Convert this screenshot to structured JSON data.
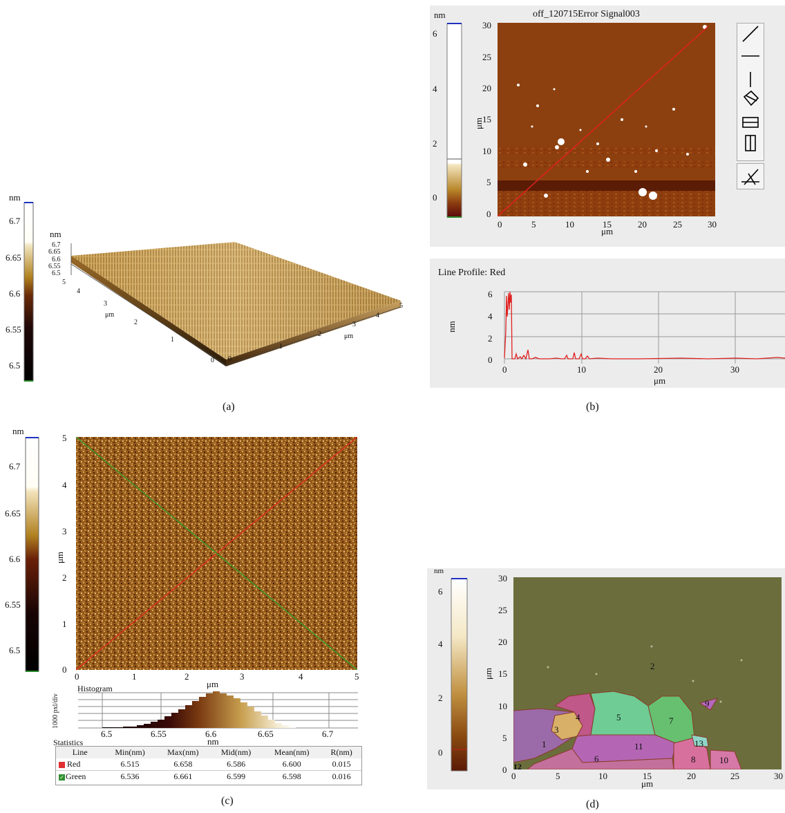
{
  "panel_a": {
    "caption": "(a)",
    "colorbar": {
      "unit": "nm",
      "ticks": [
        "6.7",
        "6.65",
        "6.6",
        "6.55",
        "6.5"
      ]
    },
    "plot3d": {
      "z_unit": "nm",
      "z_ticks": [
        "6.7",
        "6.65",
        "6.6",
        "6.55",
        "6.5"
      ],
      "left_axis_ticks": [
        "5",
        "4",
        "3",
        "2",
        "1",
        "0"
      ],
      "right_axis_ticks": [
        "0",
        "1",
        "2",
        "3",
        "4",
        "5"
      ],
      "left_axis_label": "μm",
      "right_axis_label": "μm"
    }
  },
  "panel_b": {
    "caption": "(b)",
    "title": "off_120715Error Signal003",
    "colorbar": {
      "unit": "nm",
      "ticks": [
        "6",
        "4",
        "2",
        "0"
      ]
    },
    "image": {
      "ylabel": "μm",
      "xlabel": "μm",
      "y_ticks": [
        "30",
        "25",
        "20",
        "15",
        "10",
        "5",
        "0"
      ],
      "x_ticks": [
        "0",
        "5",
        "10",
        "15",
        "20",
        "25",
        "30"
      ]
    },
    "tools": [
      "diagonal-line-tool",
      "horizontal-line-tool",
      "vertical-line-tool",
      "box-diagonal-tool",
      "horizontal-box-tool",
      "vertical-box-tool",
      "angle-tool"
    ],
    "profile": {
      "title": "Line Profile: Red",
      "ylabel": "nm",
      "xlabel": "μm",
      "y_ticks": [
        "6",
        "4",
        "2",
        "0"
      ],
      "x_ticks": [
        "0",
        "10",
        "20",
        "30"
      ],
      "line_color": "#e02020"
    }
  },
  "panel_c": {
    "caption": "(c)",
    "colorbar": {
      "unit": "nm",
      "ticks": [
        "6.7",
        "6.65",
        "6.6",
        "6.55",
        "6.5"
      ]
    },
    "image": {
      "ylabel": "μm",
      "xlabel": "μm",
      "y_ticks": [
        "5",
        "4",
        "3",
        "2",
        "1",
        "0"
      ],
      "x_ticks": [
        "0",
        "1",
        "2",
        "3",
        "4",
        "5"
      ],
      "line_colors": {
        "red": "#e0301e",
        "green": "#3a9a2a"
      }
    },
    "histogram": {
      "title": "Histogram",
      "ylabel": "1000 pxl/div",
      "xlabel": "nm",
      "x_ticks": [
        "6.5",
        "6.55",
        "6.6",
        "6.65",
        "6.7"
      ]
    },
    "statistics": {
      "title": "Statistics",
      "headers": [
        "Line",
        "Min(nm)",
        "Max(nm)",
        "Mid(nm)",
        "Mean(nm)",
        "R(nm)"
      ],
      "rows": [
        {
          "line": "Red",
          "color": "#e03030",
          "values": [
            "6.515",
            "6.658",
            "6.586",
            "6.600",
            "0.015"
          ]
        },
        {
          "line": "Green",
          "color": "#2f8f2f",
          "values": [
            "6.536",
            "6.661",
            "6.599",
            "6.598",
            "0.016"
          ]
        }
      ]
    }
  },
  "panel_d": {
    "caption": "(d)",
    "colorbar": {
      "unit": "nm",
      "ticks": [
        "6",
        "4",
        "2",
        "0"
      ]
    },
    "image": {
      "ylabel": "μm",
      "xlabel": "μm",
      "y_ticks": [
        "30",
        "25",
        "20",
        "15",
        "10",
        "5",
        "0"
      ],
      "x_ticks": [
        "0",
        "5",
        "10",
        "15",
        "20",
        "25",
        "30"
      ],
      "corner_label": "12",
      "regions": [
        "1",
        "2",
        "3",
        "4",
        "5",
        "6",
        "7",
        "8",
        "9",
        "10",
        "11",
        "13"
      ]
    }
  }
}
